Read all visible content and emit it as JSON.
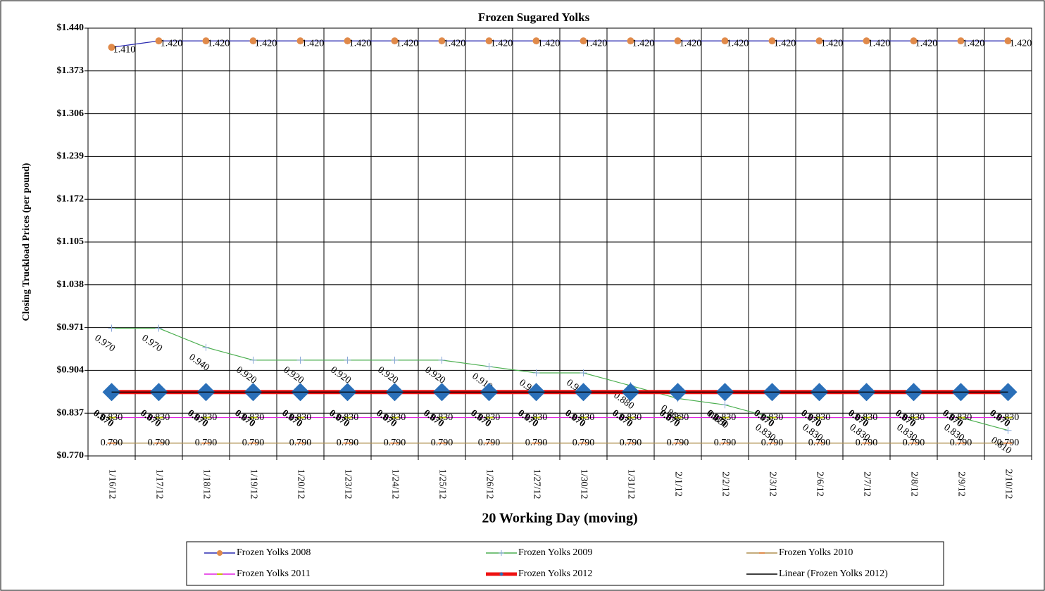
{
  "chart_data": {
    "type": "line",
    "title": "Frozen Sugared Yolks",
    "x_label": "20 Working Day (moving)",
    "y_label": "Closing Truckload Prices (per pound)",
    "categories": [
      "1/16/12",
      "1/17/12",
      "1/18/12",
      "1/19/12",
      "1/20/12",
      "1/23/12",
      "1/24/12",
      "1/25/12",
      "1/26/12",
      "1/27/12",
      "1/30/12",
      "1/31/12",
      "2/1/12",
      "2/2/12",
      "2/3/12",
      "2/6/12",
      "2/7/12",
      "2/8/12",
      "2/9/12",
      "2/10/12"
    ],
    "ylim": [
      0.77,
      1.44
    ],
    "yticks": [
      {
        "value": 0.77,
        "label": "$0.770"
      },
      {
        "value": 0.837,
        "label": "$0.837"
      },
      {
        "value": 0.904,
        "label": "$0.904"
      },
      {
        "value": 0.971,
        "label": "$0.971"
      },
      {
        "value": 1.038,
        "label": "$1.038"
      },
      {
        "value": 1.105,
        "label": "$1.105"
      },
      {
        "value": 1.172,
        "label": "$1.172"
      },
      {
        "value": 1.239,
        "label": "$1.239"
      },
      {
        "value": 1.306,
        "label": "$1.306"
      },
      {
        "value": 1.373,
        "label": "$1.373"
      },
      {
        "value": 1.44,
        "label": "$1.440"
      }
    ],
    "grid": true,
    "series": [
      {
        "name": "Frozen Yolks 2008",
        "color": "#2b2bb0",
        "marker": "circle",
        "marker_color": "#e08a4a",
        "values": [
          1.41,
          1.42,
          1.42,
          1.42,
          1.42,
          1.42,
          1.42,
          1.42,
          1.42,
          1.42,
          1.42,
          1.42,
          1.42,
          1.42,
          1.42,
          1.42,
          1.42,
          1.42,
          1.42,
          1.42
        ],
        "value_labels": [
          "1.410",
          "1.420",
          "1.420",
          "1.420",
          "1.420",
          "1.420",
          "1.420",
          "1.420",
          "1.420",
          "1.420",
          "1.420",
          "1.420",
          "1.420",
          "1.420",
          "1.420",
          "1.420",
          "1.420",
          "1.420",
          "1.420",
          "1.420"
        ]
      },
      {
        "name": "Frozen Yolks 2009",
        "color": "#4caf50",
        "marker": "plus",
        "marker_color": "#8aa8d8",
        "values": [
          0.97,
          0.97,
          0.94,
          0.92,
          0.92,
          0.92,
          0.92,
          0.92,
          0.91,
          0.9,
          0.9,
          0.88,
          0.86,
          0.85,
          0.83,
          0.83,
          0.83,
          0.83,
          0.83,
          0.81
        ],
        "value_labels": [
          "0.970",
          "0.970",
          "0.940",
          "0.920",
          "0.920",
          "0.920",
          "0.920",
          "0.920",
          "0.910",
          "0.900",
          "0.900",
          "0.880",
          "0.860",
          "0.850",
          "0.830",
          "0.830",
          "0.830",
          "0.830",
          "0.830",
          "0.810"
        ]
      },
      {
        "name": "Frozen Yolks 2010",
        "color": "#b09050",
        "marker": "dash",
        "marker_color": "#e08a4a",
        "values": [
          0.79,
          0.79,
          0.79,
          0.79,
          0.79,
          0.79,
          0.79,
          0.79,
          0.79,
          0.79,
          0.79,
          0.79,
          0.79,
          0.79,
          0.79,
          0.79,
          0.79,
          0.79,
          0.79,
          0.79
        ],
        "value_labels": [
          "0.790",
          "0.790",
          "0.790",
          "0.790",
          "0.790",
          "0.790",
          "0.790",
          "0.790",
          "0.790",
          "0.790",
          "0.790",
          "0.790",
          "0.790",
          "0.790",
          "0.790",
          "0.790",
          "0.790",
          "0.790",
          "0.790",
          "0.790"
        ]
      },
      {
        "name": "Frozen Yolks 2011",
        "color": "#e020e0",
        "marker": "dash",
        "marker_color": "#c0c000",
        "values": [
          0.83,
          0.83,
          0.83,
          0.83,
          0.83,
          0.83,
          0.83,
          0.83,
          0.83,
          0.83,
          0.83,
          0.83,
          0.83,
          0.83,
          0.83,
          0.83,
          0.83,
          0.83,
          0.83,
          0.83
        ],
        "value_labels": [
          "0.830",
          "0.830",
          "0.830",
          "0.830",
          "0.830",
          "0.830",
          "0.830",
          "0.830",
          "0.830",
          "0.830",
          "0.830",
          "0.830",
          "0.830",
          "0.830",
          "0.830",
          "0.830",
          "0.830",
          "0.830",
          "0.830",
          "0.830"
        ]
      },
      {
        "name": "Frozen Yolks 2012",
        "color": "#ee1111",
        "marker": "diamond",
        "marker_color": "#2a6fb8",
        "values": [
          0.87,
          0.87,
          0.87,
          0.87,
          0.87,
          0.87,
          0.87,
          0.87,
          0.87,
          0.87,
          0.87,
          0.87,
          0.87,
          0.87,
          0.87,
          0.87,
          0.87,
          0.87,
          0.87,
          0.87
        ],
        "value_labels": [
          "0.870",
          "0.870",
          "0.870",
          "0.870",
          "0.870",
          "0.870",
          "0.870",
          "0.870",
          "0.870",
          "0.870",
          "0.870",
          "0.870",
          "0.870",
          "0.870",
          "0.870",
          "0.870",
          "0.870",
          "0.870",
          "0.870",
          "0.870"
        ]
      },
      {
        "name": "Linear (Frozen Yolks 2012)",
        "color": "#000000",
        "marker": "none",
        "values": [
          0.87,
          0.87,
          0.87,
          0.87,
          0.87,
          0.87,
          0.87,
          0.87,
          0.87,
          0.87,
          0.87,
          0.87,
          0.87,
          0.87,
          0.87,
          0.87,
          0.87,
          0.87,
          0.87,
          0.87
        ]
      }
    ]
  }
}
